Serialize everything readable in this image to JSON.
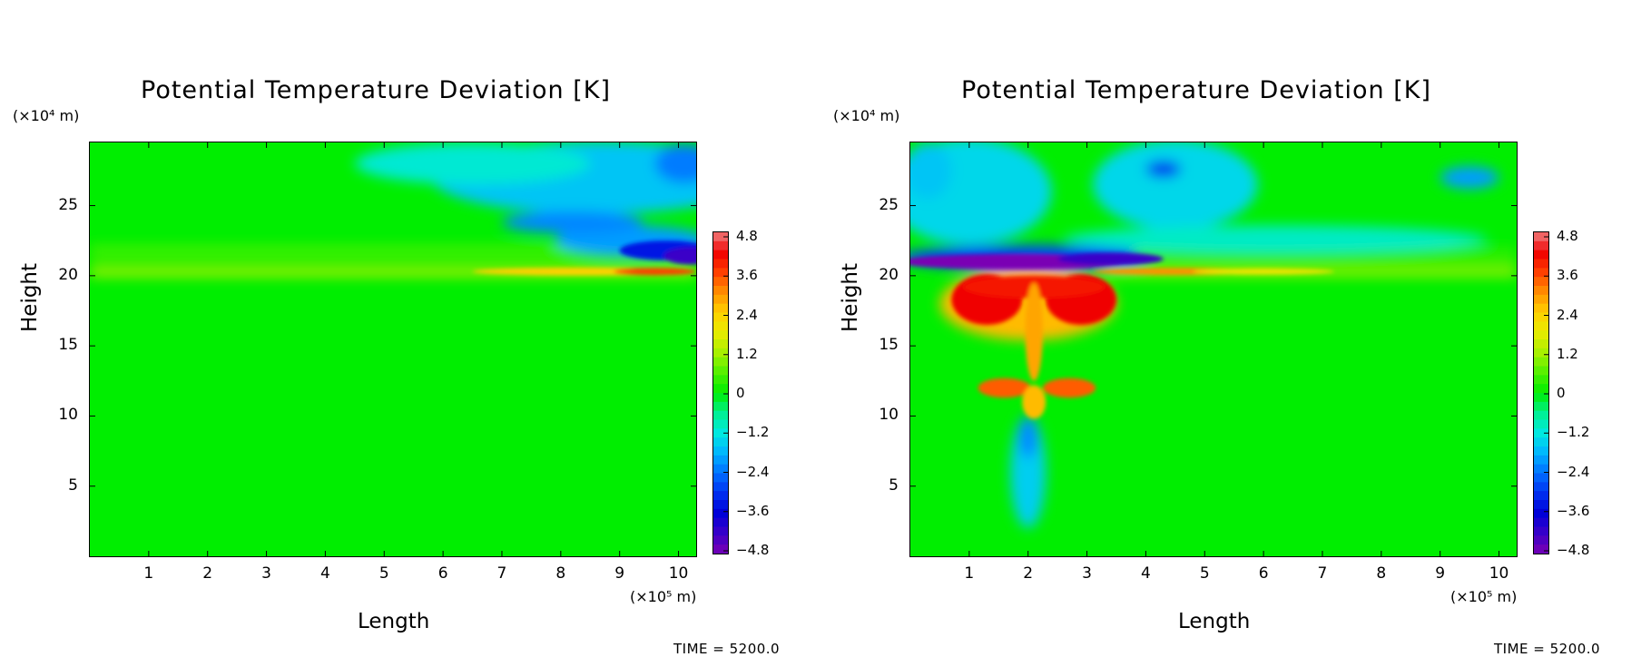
{
  "chart_data": [
    {
      "type": "heatmap",
      "title": "Potential Temperature Deviation [K]",
      "xlabel": "Length",
      "ylabel": "Height",
      "x_unit": "(×10⁵ m)",
      "y_unit": "(×10⁴ m)",
      "x_ticks": [
        "1",
        "2",
        "3",
        "4",
        "5",
        "6",
        "7",
        "8",
        "9",
        "10"
      ],
      "y_ticks": [
        "5",
        "10",
        "15",
        "20",
        "25"
      ],
      "xlim": [
        0,
        10.3
      ],
      "ylim": [
        0,
        29.5
      ],
      "colorbar": {
        "ticks": [
          "4.8",
          "3.6",
          "2.4",
          "1.2",
          "0",
          "-1.2",
          "-2.4",
          "-3.6",
          "-4.8"
        ],
        "range": [
          -4.8,
          4.8
        ]
      },
      "annotation": "TIME = 5200.0",
      "features": [
        {
          "kind": "warm_layer",
          "x_range": [
            0,
            10.3
          ],
          "y": 20.3,
          "peak_value": 4.2,
          "peak_x": 10
        },
        {
          "kind": "cold_lobe",
          "x": 10.1,
          "y": 21.5,
          "value": -4.2
        },
        {
          "kind": "cold_region",
          "x_range": [
            6,
            10.3
          ],
          "y_range": [
            22,
            29.5
          ],
          "value": -2.0
        }
      ]
    },
    {
      "type": "heatmap",
      "title": "Potential Temperature Deviation [K]",
      "xlabel": "Length",
      "ylabel": "Height",
      "x_unit": "(×10⁵ m)",
      "y_unit": "(×10⁴ m)",
      "x_ticks": [
        "1",
        "2",
        "3",
        "4",
        "5",
        "6",
        "7",
        "8",
        "9",
        "10"
      ],
      "y_ticks": [
        "5",
        "10",
        "15",
        "20",
        "25"
      ],
      "xlim": [
        0,
        10.3
      ],
      "ylim": [
        0,
        29.5
      ],
      "colorbar": {
        "ticks": [
          "4.8",
          "3.6",
          "2.4",
          "1.2",
          "0",
          "-1.2",
          "-2.4",
          "-3.6",
          "-4.8"
        ],
        "range": [
          -4.8,
          4.8
        ]
      },
      "annotation": "TIME = 5200.0",
      "features": [
        {
          "kind": "cold_band",
          "x_range": [
            0,
            3.8
          ],
          "y": 21.0,
          "value": -4.8
        },
        {
          "kind": "warm_mushroom",
          "x_range": [
            0.7,
            3.3
          ],
          "y_range": [
            15.5,
            20
          ],
          "value": 4.2
        },
        {
          "kind": "warm_blob",
          "x_range": [
            1.2,
            2.8
          ],
          "y_range": [
            11,
            13
          ],
          "value": 3.0
        },
        {
          "kind": "warm_layer",
          "x_range": [
            3.3,
            10.3
          ],
          "y": 20.3,
          "value": 2.0
        },
        {
          "kind": "cold_wings",
          "x_range": [
            3,
            10.3
          ],
          "y_range": [
            22,
            29.5
          ],
          "value": -2.0
        },
        {
          "kind": "cold_plume",
          "x": 2.0,
          "y_range": [
            2,
            10
          ],
          "value": -1.5
        }
      ]
    }
  ]
}
